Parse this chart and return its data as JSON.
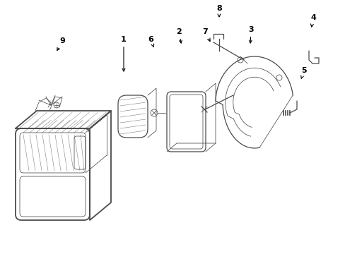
{
  "bg_color": "#ffffff",
  "line_color": "#4a4a4a",
  "text_color": "#000000",
  "lw_main": 0.9,
  "lw_thin": 0.55,
  "lw_thick": 1.3,
  "figsize": [
    4.89,
    3.6
  ],
  "dpi": 100,
  "xlim": [
    0,
    489
  ],
  "ylim": [
    0,
    360
  ]
}
